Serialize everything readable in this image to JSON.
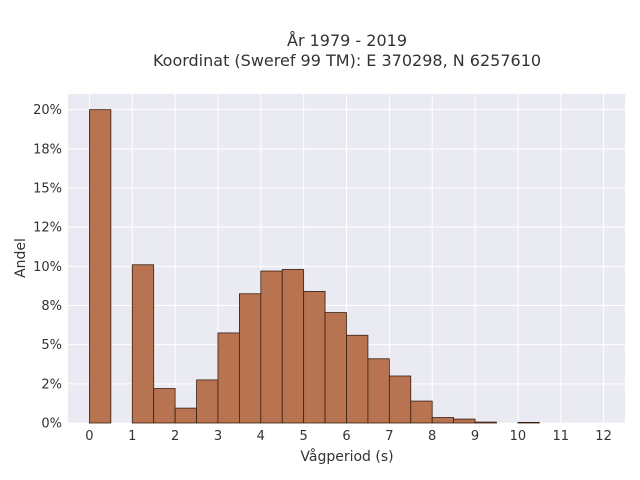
{
  "chart_data": {
    "type": "bar",
    "title_lines": [
      "År 1979 - 2019",
      "Koordinat (Sweref 99 TM): E 370298, N 6257610"
    ],
    "xlabel": "Vågperiod (s)",
    "ylabel": "Andel",
    "bin_width": 0.5,
    "bin_starts": [
      0,
      0.5,
      1,
      1.5,
      2,
      2.5,
      3,
      3.5,
      4,
      4.5,
      5,
      5.5,
      6,
      6.5,
      7,
      7.5,
      8,
      8.5,
      9,
      9.5,
      10,
      10.5,
      11,
      11.5
    ],
    "values": [
      0.2,
      0.0,
      0.101,
      0.022,
      0.0095,
      0.0275,
      0.0575,
      0.0825,
      0.097,
      0.098,
      0.084,
      0.0705,
      0.056,
      0.041,
      0.03,
      0.014,
      0.0035,
      0.0025,
      0.0006,
      0.0,
      0.0004,
      0.0,
      0.0,
      0.0
    ],
    "xlim": [
      -0.5,
      12.5
    ],
    "ylim": [
      0,
      0.21
    ],
    "x_ticks": [
      0,
      1,
      2,
      3,
      4,
      5,
      6,
      7,
      8,
      9,
      10,
      11,
      12
    ],
    "x_tick_labels": [
      "0",
      "1",
      "2",
      "3",
      "4",
      "5",
      "6",
      "7",
      "8",
      "9",
      "10",
      "11",
      "12"
    ],
    "y_ticks": [
      0,
      0.025,
      0.05,
      0.075,
      0.1,
      0.125,
      0.15,
      0.175,
      0.2
    ],
    "y_tick_labels": [
      "0%",
      "2%",
      "5%",
      "8%",
      "10%",
      "12%",
      "15%",
      "18%",
      "20%"
    ],
    "grid": true,
    "colors": {
      "bar_fill": "#b87350",
      "bar_edge": "#3a2010",
      "plot_bg": "#eaeaf2",
      "grid": "#ffffff"
    }
  }
}
